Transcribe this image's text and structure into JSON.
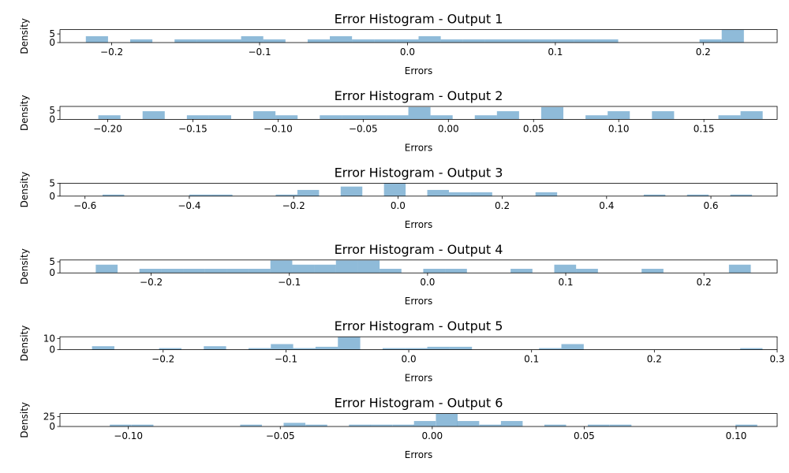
{
  "chart_data": [
    {
      "type": "bar",
      "title": "Error Histogram - Output 1",
      "xlabel": "Errors",
      "ylabel": "Density",
      "xlim": [
        -0.235,
        0.25
      ],
      "ylim": [
        0,
        7.5
      ],
      "xticks": [
        -0.2,
        -0.1,
        0.0,
        0.1,
        0.2
      ],
      "xtick_labels": [
        "−0.2",
        "−0.1",
        "0.0",
        "0.1",
        "0.2"
      ],
      "yticks": [
        0,
        5
      ],
      "ytick_labels": [
        "0",
        "5"
      ],
      "bar_color": "#1f77b4",
      "bar_alpha": 0.5,
      "bin_width": 0.015,
      "bins": [
        {
          "x": -0.2175,
          "y": 3.7
        },
        {
          "x": -0.1875,
          "y": 1.85
        },
        {
          "x": -0.1575,
          "y": 1.85
        },
        {
          "x": -0.1425,
          "y": 1.85
        },
        {
          "x": -0.1275,
          "y": 1.85
        },
        {
          "x": -0.1125,
          "y": 3.7
        },
        {
          "x": -0.0975,
          "y": 1.85
        },
        {
          "x": -0.0675,
          "y": 1.85
        },
        {
          "x": -0.0525,
          "y": 3.7
        },
        {
          "x": -0.0375,
          "y": 1.85
        },
        {
          "x": -0.0225,
          "y": 1.85
        },
        {
          "x": -0.0075,
          "y": 1.85
        },
        {
          "x": 0.0075,
          "y": 3.7
        },
        {
          "x": 0.0225,
          "y": 1.85
        },
        {
          "x": 0.0375,
          "y": 1.85
        },
        {
          "x": 0.0525,
          "y": 1.85
        },
        {
          "x": 0.0675,
          "y": 1.85
        },
        {
          "x": 0.0825,
          "y": 1.85
        },
        {
          "x": 0.0975,
          "y": 1.85
        },
        {
          "x": 0.1125,
          "y": 1.85
        },
        {
          "x": 0.1275,
          "y": 1.85
        },
        {
          "x": 0.1975,
          "y": 1.85
        },
        {
          "x": 0.2125,
          "y": 7.4
        }
      ]
    },
    {
      "type": "bar",
      "title": "Error Histogram - Output 2",
      "xlabel": "Errors",
      "ylabel": "Density",
      "xlim": [
        -0.228,
        0.193
      ],
      "ylim": [
        0,
        7.3
      ],
      "xticks": [
        -0.2,
        -0.15,
        -0.1,
        -0.05,
        0.0,
        0.05,
        0.1,
        0.15
      ],
      "xtick_labels": [
        "−0.20",
        "−0.15",
        "−0.10",
        "−0.05",
        "0.00",
        "0.05",
        "0.10",
        "0.15"
      ],
      "yticks": [
        0,
        5
      ],
      "ytick_labels": [
        "0",
        "5"
      ],
      "bar_color": "#1f77b4",
      "bar_alpha": 0.5,
      "bin_width": 0.013,
      "bins": [
        {
          "x": -0.2055,
          "y": 2.3
        },
        {
          "x": -0.1795,
          "y": 4.6
        },
        {
          "x": -0.1535,
          "y": 2.3
        },
        {
          "x": -0.1405,
          "y": 2.3
        },
        {
          "x": -0.1145,
          "y": 4.6
        },
        {
          "x": -0.1015,
          "y": 2.3
        },
        {
          "x": -0.0755,
          "y": 2.3
        },
        {
          "x": -0.0625,
          "y": 2.3
        },
        {
          "x": -0.0495,
          "y": 2.3
        },
        {
          "x": -0.0365,
          "y": 2.3
        },
        {
          "x": -0.0235,
          "y": 6.9
        },
        {
          "x": -0.0105,
          "y": 2.3
        },
        {
          "x": 0.0155,
          "y": 2.3
        },
        {
          "x": 0.0285,
          "y": 4.6
        },
        {
          "x": 0.0545,
          "y": 6.9
        },
        {
          "x": 0.0805,
          "y": 2.3
        },
        {
          "x": 0.0935,
          "y": 4.6
        },
        {
          "x": 0.1195,
          "y": 4.6
        },
        {
          "x": 0.1585,
          "y": 2.3
        },
        {
          "x": 0.1715,
          "y": 4.6
        }
      ]
    },
    {
      "type": "bar",
      "title": "Error Histogram - Output 3",
      "xlabel": "Errors",
      "ylabel": "Density",
      "xlim": [
        -0.648,
        0.727
      ],
      "ylim": [
        0,
        5.0
      ],
      "xticks": [
        -0.6,
        -0.4,
        -0.2,
        0.0,
        0.2,
        0.4,
        0.6
      ],
      "xtick_labels": [
        "−0.6",
        "−0.4",
        "−0.2",
        "0.0",
        "0.2",
        "0.4",
        "0.6"
      ],
      "yticks": [
        0,
        5
      ],
      "ytick_labels": [
        "0",
        "5"
      ],
      "bar_color": "#1f77b4",
      "bar_alpha": 0.5,
      "bin_width": 0.0415,
      "bins": [
        {
          "x": -0.5663,
          "y": 0.6
        },
        {
          "x": -0.4003,
          "y": 0.6
        },
        {
          "x": -0.3588,
          "y": 0.6
        },
        {
          "x": -0.2343,
          "y": 0.6
        },
        {
          "x": -0.1928,
          "y": 2.4
        },
        {
          "x": -0.1098,
          "y": 3.7
        },
        {
          "x": -0.0268,
          "y": 4.9
        },
        {
          "x": 0.0562,
          "y": 2.4
        },
        {
          "x": 0.0977,
          "y": 1.5
        },
        {
          "x": 0.1392,
          "y": 1.5
        },
        {
          "x": 0.2637,
          "y": 1.5
        },
        {
          "x": 0.4712,
          "y": 0.6
        },
        {
          "x": 0.5542,
          "y": 0.6
        },
        {
          "x": 0.6372,
          "y": 0.6
        }
      ]
    },
    {
      "type": "bar",
      "title": "Error Histogram - Output 4",
      "xlabel": "Errors",
      "ylabel": "Density",
      "xlim": [
        -0.266,
        0.253
      ],
      "ylim": [
        0,
        5.8
      ],
      "xticks": [
        -0.2,
        -0.1,
        0.0,
        0.1,
        0.2
      ],
      "xtick_labels": [
        "−0.2",
        "−0.1",
        "0.0",
        "0.1",
        "0.2"
      ],
      "yticks": [
        0,
        5
      ],
      "ytick_labels": [
        "0",
        "5"
      ],
      "bar_color": "#1f77b4",
      "bar_alpha": 0.5,
      "bin_width": 0.0158,
      "bins": [
        {
          "x": -0.2401,
          "y": 3.7
        },
        {
          "x": -0.2085,
          "y": 1.85
        },
        {
          "x": -0.1927,
          "y": 1.85
        },
        {
          "x": -0.1769,
          "y": 1.85
        },
        {
          "x": -0.1611,
          "y": 1.85
        },
        {
          "x": -0.1453,
          "y": 1.85
        },
        {
          "x": -0.1295,
          "y": 1.85
        },
        {
          "x": -0.1137,
          "y": 5.6
        },
        {
          "x": -0.0979,
          "y": 3.7
        },
        {
          "x": -0.0821,
          "y": 3.7
        },
        {
          "x": -0.0663,
          "y": 5.6
        },
        {
          "x": -0.0505,
          "y": 5.6
        },
        {
          "x": -0.0347,
          "y": 1.85
        },
        {
          "x": -0.0031,
          "y": 1.85
        },
        {
          "x": 0.0127,
          "y": 1.85
        },
        {
          "x": 0.0601,
          "y": 1.85
        },
        {
          "x": 0.0917,
          "y": 3.7
        },
        {
          "x": 0.1075,
          "y": 1.85
        },
        {
          "x": 0.1549,
          "y": 1.85
        },
        {
          "x": 0.2181,
          "y": 3.7
        }
      ]
    },
    {
      "type": "bar",
      "title": "Error Histogram - Output 5",
      "xlabel": "Errors",
      "ylabel": "Density",
      "xlim": [
        -0.284,
        0.3
      ],
      "ylim": [
        0,
        11.5
      ],
      "xticks": [
        -0.2,
        -0.1,
        0.0,
        0.1,
        0.2,
        0.3
      ],
      "xtick_labels": [
        "−0.2",
        "−0.1",
        "0.0",
        "0.1",
        "0.2",
        "0.3"
      ],
      "yticks": [
        0,
        10
      ],
      "ytick_labels": [
        "0",
        "10"
      ],
      "bar_color": "#1f77b4",
      "bar_alpha": 0.5,
      "bin_width": 0.0182,
      "bins": [
        {
          "x": -0.2579,
          "y": 3.1
        },
        {
          "x": -0.2033,
          "y": 1.4
        },
        {
          "x": -0.1669,
          "y": 3.1
        },
        {
          "x": -0.1305,
          "y": 1.4
        },
        {
          "x": -0.1123,
          "y": 5.0
        },
        {
          "x": -0.0941,
          "y": 1.4
        },
        {
          "x": -0.0759,
          "y": 2.6
        },
        {
          "x": -0.0577,
          "y": 11.2
        },
        {
          "x": -0.0213,
          "y": 1.4
        },
        {
          "x": -0.0031,
          "y": 1.4
        },
        {
          "x": 0.0151,
          "y": 2.6
        },
        {
          "x": 0.0333,
          "y": 2.6
        },
        {
          "x": 0.1061,
          "y": 1.4
        },
        {
          "x": 0.1243,
          "y": 5.0
        },
        {
          "x": 0.2699,
          "y": 1.4
        }
      ]
    },
    {
      "type": "bar",
      "title": "Error Histogram - Output 6",
      "xlabel": "Errors",
      "ylabel": "Density",
      "xlim": [
        -0.1225,
        0.1135
      ],
      "ylim": [
        0,
        33
      ],
      "xticks": [
        -0.1,
        -0.05,
        0.0,
        0.05,
        0.1
      ],
      "xtick_labels": [
        "−0.10",
        "−0.05",
        "0.00",
        "0.05",
        "0.10"
      ],
      "yticks": [
        0,
        25
      ],
      "ytick_labels": [
        "0",
        "25"
      ],
      "bar_color": "#1f77b4",
      "bar_alpha": 0.5,
      "bin_width": 0.00715,
      "bins": [
        {
          "x": -0.1061,
          "y": 4.7
        },
        {
          "x": -0.0989,
          "y": 4.7
        },
        {
          "x": -0.0632,
          "y": 4.7
        },
        {
          "x": -0.0489,
          "y": 9.3
        },
        {
          "x": -0.0417,
          "y": 4.7
        },
        {
          "x": -0.0274,
          "y": 4.7
        },
        {
          "x": -0.0203,
          "y": 4.7
        },
        {
          "x": -0.0131,
          "y": 4.7
        },
        {
          "x": -0.006,
          "y": 14.0
        },
        {
          "x": 0.0012,
          "y": 32.6
        },
        {
          "x": 0.0083,
          "y": 14.0
        },
        {
          "x": 0.0155,
          "y": 4.7
        },
        {
          "x": 0.0226,
          "y": 14.0
        },
        {
          "x": 0.0369,
          "y": 4.7
        },
        {
          "x": 0.0512,
          "y": 4.7
        },
        {
          "x": 0.0584,
          "y": 4.7
        },
        {
          "x": 0.0998,
          "y": 4.7
        }
      ]
    }
  ]
}
